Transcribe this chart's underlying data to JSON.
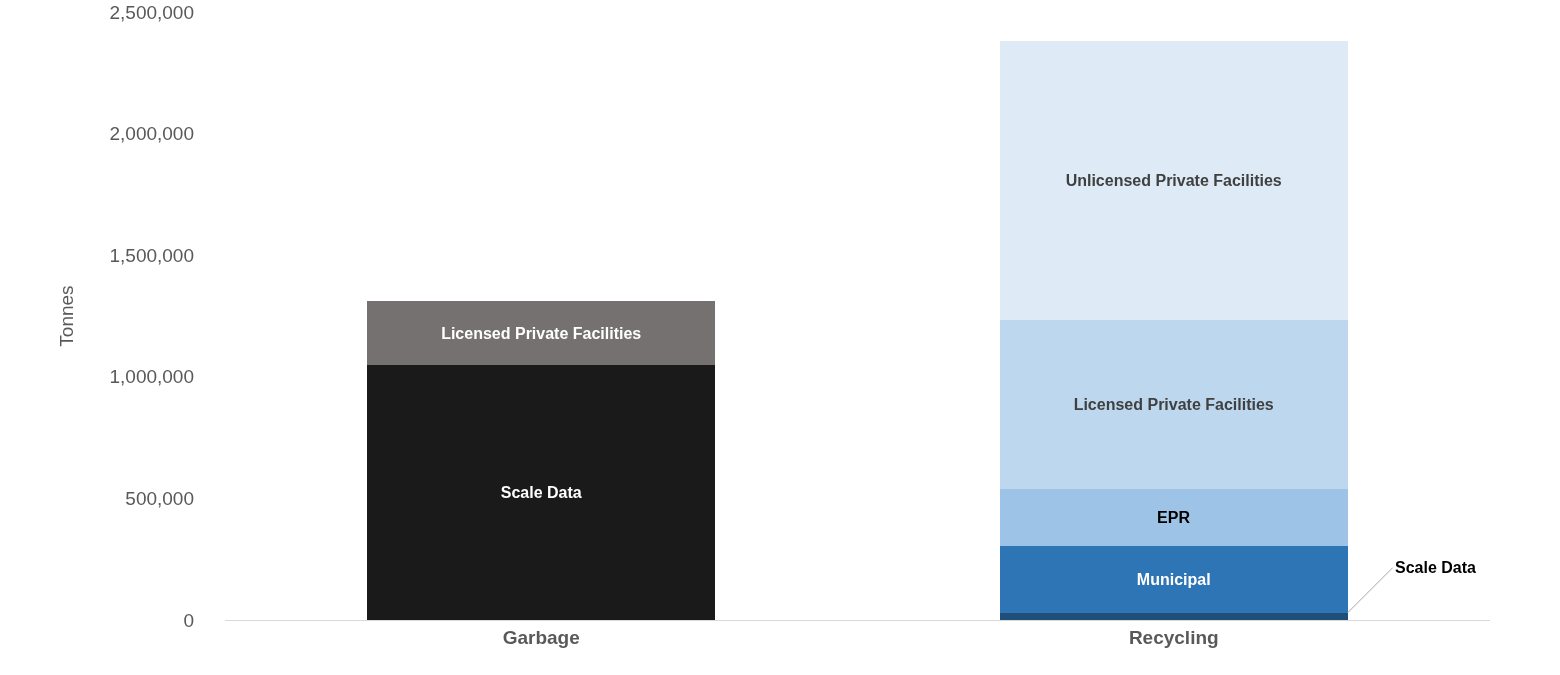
{
  "chart_data": {
    "type": "bar",
    "stacked": true,
    "ylabel": "Tonnes",
    "categories": [
      "Garbage",
      "Recycling"
    ],
    "series": [
      {
        "name": "Scale Data",
        "colors": [
          "#1a1a1a",
          "#1f4e79"
        ],
        "values": [
          1050000,
          30000
        ]
      },
      {
        "name": "Municipal",
        "color": "#2e75b6",
        "values": [
          null,
          275000
        ]
      },
      {
        "name": "EPR",
        "color": "#9dc3e6",
        "values": [
          null,
          235000
        ]
      },
      {
        "name": "Licensed Private Facilities",
        "colors": [
          "#757171",
          "#bdd7ee"
        ],
        "values": [
          260000,
          695000
        ]
      },
      {
        "name": "Unlicensed Private Facilities",
        "color": "#deebf7",
        "values": [
          null,
          1145000
        ]
      }
    ],
    "ylim": [
      0,
      2500000
    ],
    "yticks": [
      0,
      {
        "value": 500000,
        "label": "500,000"
      },
      {
        "value": 1000000,
        "label": "1,000,000"
      },
      {
        "value": 1500000,
        "label": "1,500,000"
      },
      {
        "value": 2000000,
        "label": "2,000,000"
      },
      {
        "value": 2500000,
        "label": "2,500,000"
      }
    ],
    "grid": false,
    "legend": false
  }
}
